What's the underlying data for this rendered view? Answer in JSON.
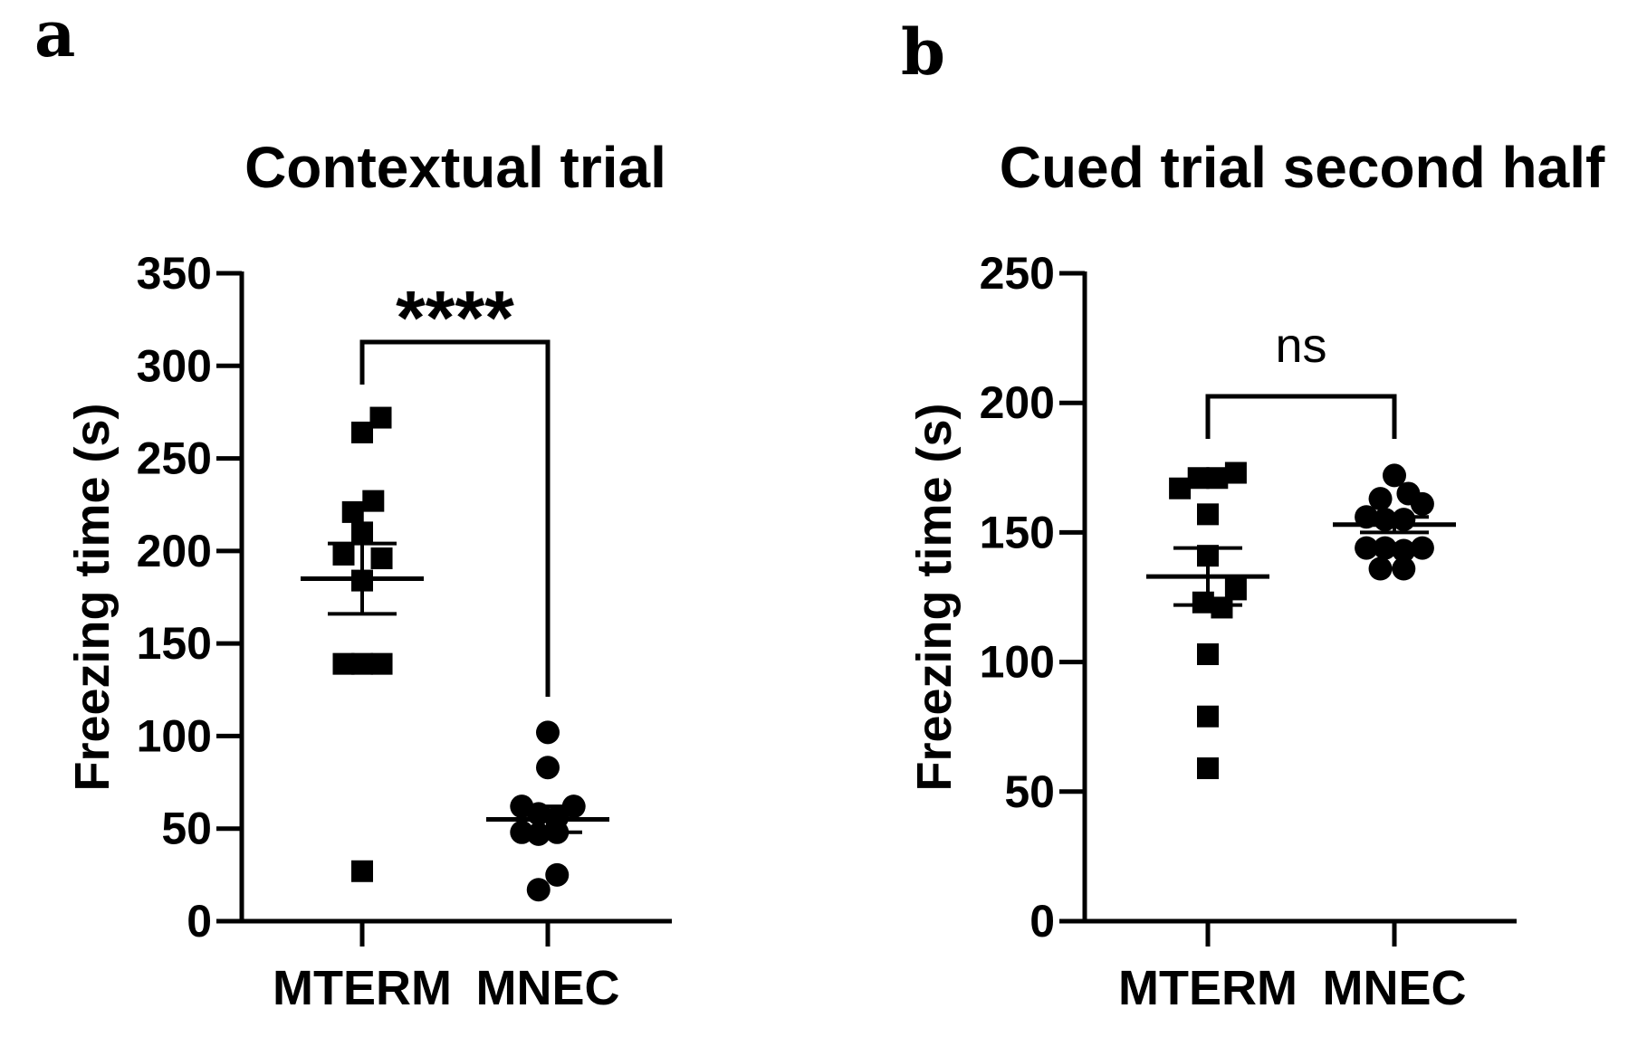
{
  "chart_data": [
    {
      "panel": "a",
      "type": "scatter",
      "title": "Contextual trial",
      "xlabel": "",
      "ylabel": "Freezing time (s)",
      "ylim": [
        0,
        350
      ],
      "yticks": [
        0,
        50,
        100,
        150,
        200,
        250,
        300,
        350
      ],
      "categories": [
        "MTERM",
        "MNEC"
      ],
      "significance": "****",
      "series": [
        {
          "name": "MTERM",
          "marker": "square",
          "points": [
            {
              "offset": 0.2,
              "y": 272
            },
            {
              "offset": 0.0,
              "y": 264
            },
            {
              "offset": 0.12,
              "y": 227
            },
            {
              "offset": -0.1,
              "y": 221
            },
            {
              "offset": 0.0,
              "y": 210
            },
            {
              "offset": -0.2,
              "y": 198
            },
            {
              "offset": 0.21,
              "y": 196
            },
            {
              "offset": 0.0,
              "y": 184
            },
            {
              "offset": -0.2,
              "y": 139
            },
            {
              "offset": 0.0,
              "y": 139
            },
            {
              "offset": 0.21,
              "y": 139
            },
            {
              "offset": 0.0,
              "y": 27
            }
          ],
          "mean": 185,
          "sem": 19
        },
        {
          "name": "MNEC",
          "marker": "circle",
          "points": [
            {
              "offset": 0.0,
              "y": 102
            },
            {
              "offset": 0.0,
              "y": 83
            },
            {
              "offset": -0.28,
              "y": 62
            },
            {
              "offset": 0.28,
              "y": 62
            },
            {
              "offset": -0.1,
              "y": 58
            },
            {
              "offset": 0.1,
              "y": 56
            },
            {
              "offset": -0.28,
              "y": 48
            },
            {
              "offset": 0.1,
              "y": 48
            },
            {
              "offset": -0.1,
              "y": 47
            },
            {
              "offset": 0.1,
              "y": 25
            },
            {
              "offset": -0.1,
              "y": 17
            }
          ],
          "mean": 55,
          "sem": 7
        }
      ]
    },
    {
      "panel": "b",
      "type": "scatter",
      "title": "Cued trial second half",
      "xlabel": "",
      "ylabel": "Freezing time (s)",
      "ylim": [
        0,
        250
      ],
      "yticks": [
        0,
        50,
        100,
        150,
        200,
        250
      ],
      "categories": [
        "MTERM",
        "MNEC"
      ],
      "significance": "ns",
      "series": [
        {
          "name": "MTERM",
          "marker": "square",
          "points": [
            {
              "offset": 0.3,
              "y": 173
            },
            {
              "offset": 0.1,
              "y": 171
            },
            {
              "offset": -0.1,
              "y": 171
            },
            {
              "offset": -0.3,
              "y": 167
            },
            {
              "offset": 0.0,
              "y": 157
            },
            {
              "offset": 0.0,
              "y": 141
            },
            {
              "offset": 0.3,
              "y": 128
            },
            {
              "offset": -0.05,
              "y": 123
            },
            {
              "offset": 0.15,
              "y": 121
            },
            {
              "offset": 0.0,
              "y": 103
            },
            {
              "offset": 0.0,
              "y": 79
            },
            {
              "offset": 0.0,
              "y": 59
            }
          ],
          "mean": 133,
          "sem": 11
        },
        {
          "name": "MNEC",
          "marker": "circle",
          "points": [
            {
              "offset": 0.0,
              "y": 172
            },
            {
              "offset": 0.15,
              "y": 165
            },
            {
              "offset": -0.15,
              "y": 163
            },
            {
              "offset": 0.3,
              "y": 161
            },
            {
              "offset": -0.3,
              "y": 156
            },
            {
              "offset": -0.1,
              "y": 155
            },
            {
              "offset": 0.1,
              "y": 155
            },
            {
              "offset": -0.3,
              "y": 144
            },
            {
              "offset": 0.3,
              "y": 144
            },
            {
              "offset": -0.1,
              "y": 144
            },
            {
              "offset": 0.1,
              "y": 143
            },
            {
              "offset": -0.15,
              "y": 136
            },
            {
              "offset": 0.1,
              "y": 136
            }
          ],
          "mean": 153,
          "sem": 3
        }
      ]
    }
  ]
}
